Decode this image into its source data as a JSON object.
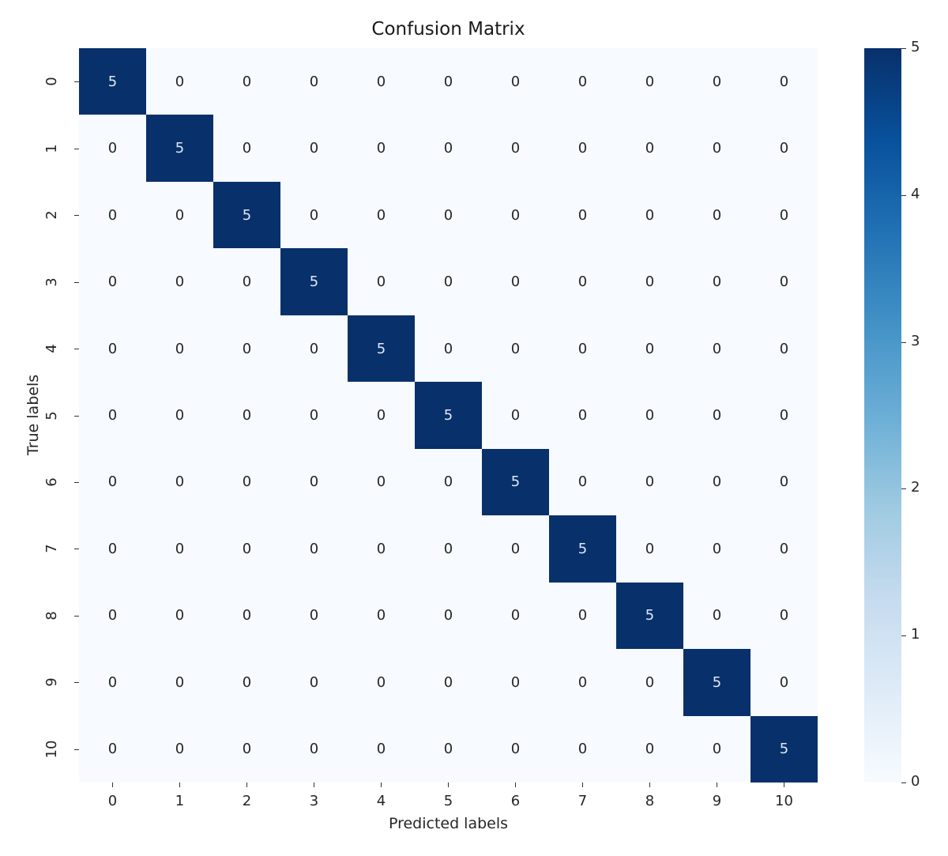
{
  "chart_data": {
    "type": "heatmap",
    "title": "Confusion Matrix",
    "xlabel": "Predicted labels",
    "ylabel": "True labels",
    "x_categories": [
      "0",
      "1",
      "2",
      "3",
      "4",
      "5",
      "6",
      "7",
      "8",
      "9",
      "10"
    ],
    "y_categories": [
      "0",
      "1",
      "2",
      "3",
      "4",
      "5",
      "6",
      "7",
      "8",
      "9",
      "10"
    ],
    "matrix": [
      [
        5,
        0,
        0,
        0,
        0,
        0,
        0,
        0,
        0,
        0,
        0
      ],
      [
        0,
        5,
        0,
        0,
        0,
        0,
        0,
        0,
        0,
        0,
        0
      ],
      [
        0,
        0,
        5,
        0,
        0,
        0,
        0,
        0,
        0,
        0,
        0
      ],
      [
        0,
        0,
        0,
        5,
        0,
        0,
        0,
        0,
        0,
        0,
        0
      ],
      [
        0,
        0,
        0,
        0,
        5,
        0,
        0,
        0,
        0,
        0,
        0
      ],
      [
        0,
        0,
        0,
        0,
        0,
        5,
        0,
        0,
        0,
        0,
        0
      ],
      [
        0,
        0,
        0,
        0,
        0,
        0,
        5,
        0,
        0,
        0,
        0
      ],
      [
        0,
        0,
        0,
        0,
        0,
        0,
        0,
        5,
        0,
        0,
        0
      ],
      [
        0,
        0,
        0,
        0,
        0,
        0,
        0,
        0,
        5,
        0,
        0
      ],
      [
        0,
        0,
        0,
        0,
        0,
        0,
        0,
        0,
        0,
        5,
        0
      ],
      [
        0,
        0,
        0,
        0,
        0,
        0,
        0,
        0,
        0,
        0,
        5
      ]
    ],
    "annotations": true,
    "colormap": "Blues",
    "colorbar": {
      "min": 0,
      "max": 5,
      "ticks": [
        "0",
        "1",
        "2",
        "3",
        "4",
        "5"
      ],
      "position": "right"
    },
    "grid": false
  },
  "colors": {
    "high": "#08306b",
    "low": "#f7fbff",
    "text_on_high": "#dfe8f5",
    "text_on_low": "#262626",
    "gradient": [
      "#f7fbff",
      "#deebf7",
      "#c6dbef",
      "#9ecae1",
      "#6baed6",
      "#4292c6",
      "#2171b5",
      "#08519c",
      "#08306b"
    ]
  }
}
